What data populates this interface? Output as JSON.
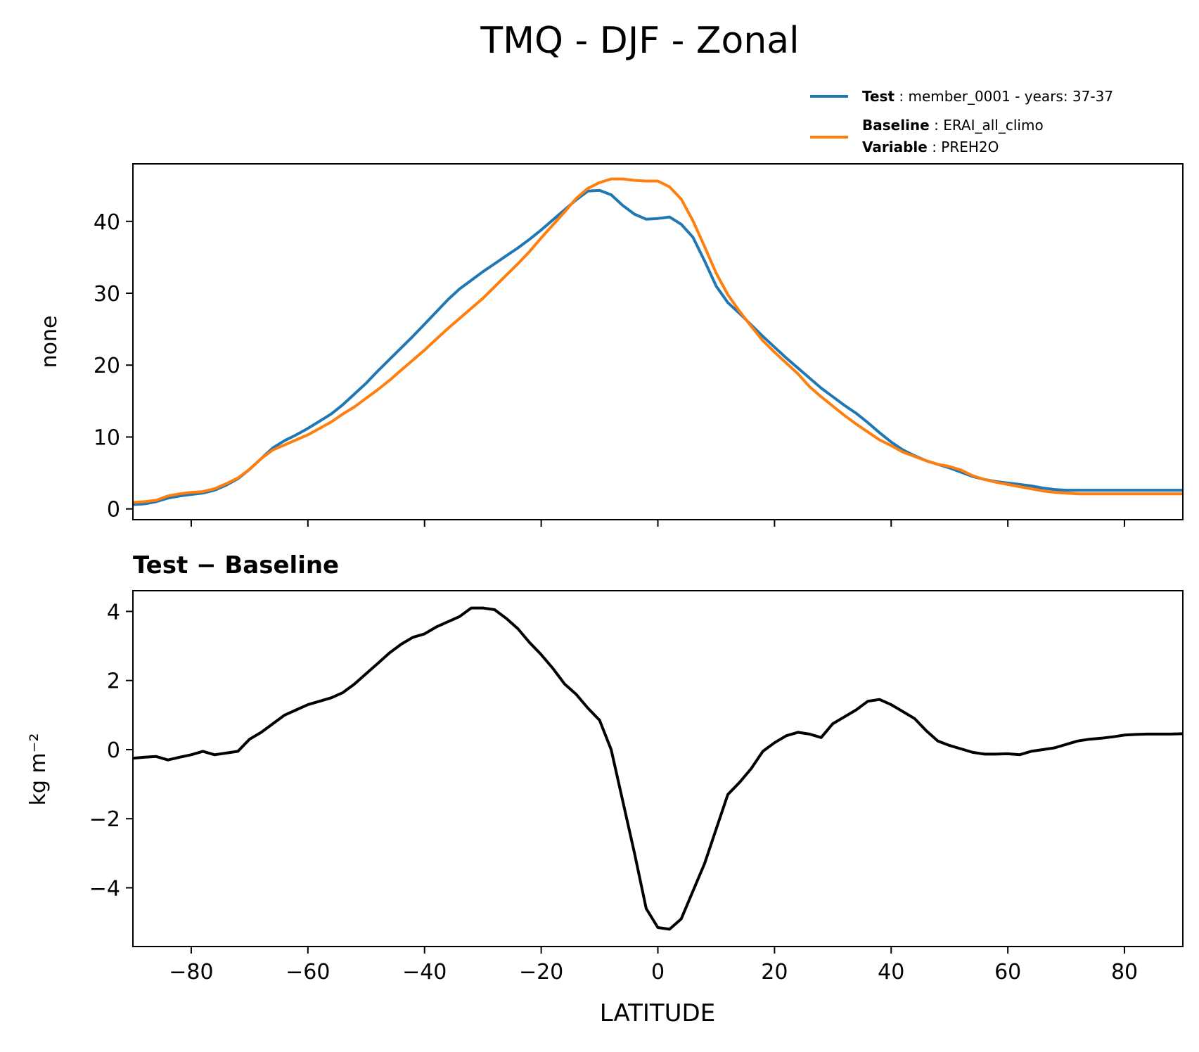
{
  "figure": {
    "title": "TMQ - DJF - Zonal"
  },
  "legend": {
    "test_key": "Test",
    "test_value": "member_0001 - years: 37-37",
    "baseline_key": "Baseline",
    "baseline_value": "ERAI_all_climo",
    "variable_key": "Variable",
    "variable_value": "PREH2O",
    "colors": {
      "test": "#1f77b4",
      "baseline": "#ff7f0e"
    }
  },
  "chart_data": [
    {
      "type": "line",
      "panel": "top",
      "title": "",
      "xlabel": "",
      "ylabel": "none",
      "xlim": [
        -90,
        90
      ],
      "ylim": [
        -1.5,
        48
      ],
      "yticks": [
        0,
        10,
        20,
        30,
        40
      ],
      "ytick_labels": [
        "0",
        "10",
        "20",
        "30",
        "40"
      ],
      "xticks": [
        -80,
        -60,
        -40,
        -20,
        0,
        20,
        40,
        60,
        80
      ],
      "x": [
        -90,
        -88,
        -86,
        -84,
        -82,
        -80,
        -78,
        -76,
        -74,
        -72,
        -70,
        -68,
        -66,
        -64,
        -62,
        -60,
        -58,
        -56,
        -54,
        -52,
        -50,
        -48,
        -46,
        -44,
        -42,
        -40,
        -38,
        -36,
        -34,
        -32,
        -30,
        -28,
        -26,
        -24,
        -22,
        -20,
        -18,
        -16,
        -14,
        -12,
        -10,
        -8,
        -6,
        -4,
        -2,
        0,
        2,
        4,
        6,
        8,
        10,
        12,
        14,
        16,
        18,
        20,
        22,
        24,
        26,
        28,
        30,
        32,
        34,
        36,
        38,
        40,
        42,
        44,
        46,
        48,
        50,
        52,
        54,
        56,
        58,
        60,
        62,
        64,
        66,
        68,
        70,
        72,
        74,
        76,
        78,
        80,
        82,
        84,
        86,
        88,
        90
      ],
      "series": [
        {
          "name": "Test",
          "color": "#1f77b4",
          "values": [
            0.6,
            0.7,
            1.0,
            1.5,
            1.8,
            2.0,
            2.2,
            2.6,
            3.3,
            4.2,
            5.5,
            7.0,
            8.5,
            9.5,
            10.3,
            11.2,
            12.2,
            13.2,
            14.5,
            16.0,
            17.5,
            19.2,
            20.8,
            22.4,
            24.0,
            25.7,
            27.4,
            29.1,
            30.6,
            31.8,
            33.0,
            34.1,
            35.2,
            36.3,
            37.5,
            38.8,
            40.2,
            41.6,
            43.0,
            44.2,
            44.3,
            43.7,
            42.2,
            41.0,
            40.3,
            40.4,
            40.6,
            39.6,
            37.8,
            34.5,
            31.0,
            28.7,
            27.2,
            25.6,
            24.0,
            22.5,
            21.0,
            19.6,
            18.2,
            16.8,
            15.6,
            14.4,
            13.3,
            12.0,
            10.6,
            9.3,
            8.2,
            7.4,
            6.7,
            6.2,
            5.7,
            5.1,
            4.5,
            4.1,
            3.8,
            3.6,
            3.4,
            3.2,
            2.9,
            2.7,
            2.6,
            2.6,
            2.6,
            2.6,
            2.6,
            2.6,
            2.6,
            2.6,
            2.6,
            2.6,
            2.6
          ]
        },
        {
          "name": "Baseline",
          "color": "#ff7f0e",
          "values": [
            0.9,
            1.0,
            1.2,
            1.8,
            2.1,
            2.3,
            2.4,
            2.8,
            3.5,
            4.3,
            5.5,
            7.0,
            8.2,
            8.9,
            9.6,
            10.3,
            11.2,
            12.1,
            13.2,
            14.2,
            15.4,
            16.6,
            17.9,
            19.3,
            20.7,
            22.1,
            23.6,
            25.1,
            26.5,
            27.9,
            29.3,
            30.9,
            32.5,
            34.1,
            35.8,
            37.7,
            39.5,
            41.3,
            43.2,
            44.6,
            45.4,
            45.9,
            45.9,
            45.7,
            45.6,
            45.6,
            44.8,
            43.1,
            40.1,
            36.5,
            32.8,
            29.8,
            27.5,
            25.4,
            23.4,
            21.8,
            20.3,
            18.8,
            17.0,
            15.6,
            14.3,
            13.0,
            11.8,
            10.7,
            9.6,
            8.8,
            7.9,
            7.3,
            6.7,
            6.2,
            5.9,
            5.4,
            4.6,
            4.1,
            3.7,
            3.4,
            3.1,
            2.8,
            2.5,
            2.3,
            2.2,
            2.1,
            2.1,
            2.1,
            2.1,
            2.1,
            2.1,
            2.1,
            2.1,
            2.1,
            2.1
          ]
        }
      ]
    },
    {
      "type": "line",
      "panel": "bottom",
      "title": "Test − Baseline",
      "xlabel": "LATITUDE",
      "ylabel": "kg m⁻²",
      "xlim": [
        -90,
        90
      ],
      "ylim": [
        -5.7,
        4.6
      ],
      "yticks": [
        -4,
        -2,
        0,
        2,
        4
      ],
      "ytick_labels": [
        "−4",
        "−2",
        "0",
        "2",
        "4"
      ],
      "xticks": [
        -80,
        -60,
        -40,
        -20,
        0,
        20,
        40,
        60,
        80
      ],
      "xtick_labels": [
        "−80",
        "−60",
        "−40",
        "−20",
        "0",
        "20",
        "40",
        "60",
        "80"
      ],
      "x": [
        -90,
        -88,
        -86,
        -84,
        -82,
        -80,
        -78,
        -76,
        -74,
        -72,
        -70,
        -68,
        -66,
        -64,
        -62,
        -60,
        -58,
        -56,
        -54,
        -52,
        -50,
        -48,
        -46,
        -44,
        -42,
        -40,
        -38,
        -36,
        -34,
        -32,
        -30,
        -28,
        -26,
        -24,
        -22,
        -20,
        -18,
        -16,
        -14,
        -12,
        -10,
        -8,
        -6,
        -4,
        -2,
        0,
        2,
        4,
        6,
        8,
        10,
        12,
        14,
        16,
        18,
        20,
        22,
        24,
        26,
        28,
        30,
        32,
        34,
        36,
        38,
        40,
        42,
        44,
        46,
        48,
        50,
        52,
        54,
        56,
        58,
        60,
        62,
        64,
        66,
        68,
        70,
        72,
        74,
        76,
        78,
        80,
        82,
        84,
        86,
        88,
        90
      ],
      "series": [
        {
          "name": "Test − Baseline",
          "color": "#000000",
          "values": [
            -0.25,
            -0.22,
            -0.2,
            -0.3,
            -0.22,
            -0.15,
            -0.05,
            -0.15,
            -0.1,
            -0.05,
            0.3,
            0.5,
            0.75,
            1.0,
            1.15,
            1.3,
            1.4,
            1.5,
            1.65,
            1.9,
            2.2,
            2.5,
            2.8,
            3.05,
            3.25,
            3.35,
            3.55,
            3.7,
            3.85,
            4.1,
            4.1,
            4.05,
            3.8,
            3.5,
            3.1,
            2.75,
            2.35,
            1.9,
            1.6,
            1.2,
            0.85,
            0.0,
            -1.5,
            -3.0,
            -4.6,
            -5.15,
            -5.2,
            -4.9,
            -4.1,
            -3.3,
            -2.3,
            -1.3,
            -0.95,
            -0.55,
            -0.05,
            0.2,
            0.4,
            0.5,
            0.45,
            0.35,
            0.75,
            0.95,
            1.15,
            1.4,
            1.45,
            1.3,
            1.1,
            0.9,
            0.55,
            0.25,
            0.12,
            0.02,
            -0.08,
            -0.13,
            -0.13,
            -0.12,
            -0.15,
            -0.05,
            0.0,
            0.05,
            0.15,
            0.25,
            0.3,
            0.33,
            0.37,
            0.42,
            0.44,
            0.45,
            0.45,
            0.45,
            0.46
          ]
        }
      ]
    }
  ]
}
